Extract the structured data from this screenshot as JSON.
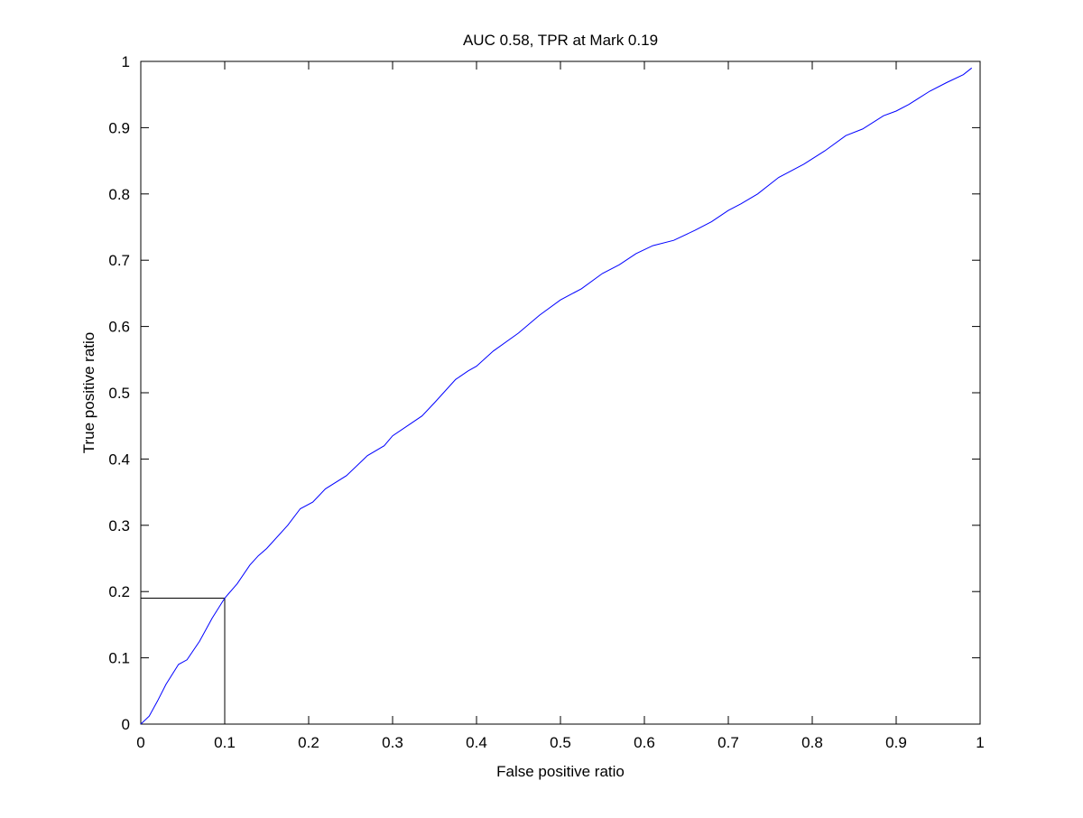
{
  "chart_data": {
    "type": "line",
    "title": "AUC 0.58, TPR at Mark 0.19",
    "xlabel": "False positive ratio",
    "ylabel": "True positive ratio",
    "xlim": [
      0,
      1
    ],
    "ylim": [
      0,
      1
    ],
    "xticks": [
      "0",
      "0.1",
      "0.2",
      "0.3",
      "0.4",
      "0.5",
      "0.6",
      "0.7",
      "0.8",
      "0.9",
      "1"
    ],
    "yticks": [
      "0",
      "0.1",
      "0.2",
      "0.3",
      "0.4",
      "0.5",
      "0.6",
      "0.7",
      "0.8",
      "0.9",
      "1"
    ],
    "grid": false,
    "series": [
      {
        "color": "#0000ff",
        "x": [
          0,
          0.01,
          0.02,
          0.03,
          0.045,
          0.055,
          0.07,
          0.085,
          0.1,
          0.115,
          0.13,
          0.14,
          0.15,
          0.175,
          0.19,
          0.205,
          0.22,
          0.245,
          0.27,
          0.29,
          0.3,
          0.32,
          0.335,
          0.35,
          0.375,
          0.39,
          0.4,
          0.42,
          0.45,
          0.475,
          0.5,
          0.525,
          0.55,
          0.57,
          0.59,
          0.61,
          0.635,
          0.66,
          0.68,
          0.7,
          0.715,
          0.735,
          0.76,
          0.79,
          0.815,
          0.84,
          0.86,
          0.885,
          0.9,
          0.915,
          0.94,
          0.96,
          0.98,
          0.99
        ],
        "y": [
          0,
          0.012,
          0.035,
          0.06,
          0.09,
          0.097,
          0.125,
          0.16,
          0.19,
          0.212,
          0.24,
          0.254,
          0.265,
          0.3,
          0.325,
          0.335,
          0.355,
          0.375,
          0.405,
          0.42,
          0.435,
          0.452,
          0.465,
          0.485,
          0.52,
          0.533,
          0.54,
          0.563,
          0.59,
          0.617,
          0.64,
          0.657,
          0.68,
          0.693,
          0.71,
          0.722,
          0.73,
          0.745,
          0.758,
          0.775,
          0.785,
          0.8,
          0.825,
          0.845,
          0.865,
          0.888,
          0.898,
          0.918,
          0.925,
          0.935,
          0.955,
          0.968,
          0.98,
          0.99
        ]
      }
    ],
    "mark": {
      "x": 0.1,
      "y": 0.19
    }
  }
}
